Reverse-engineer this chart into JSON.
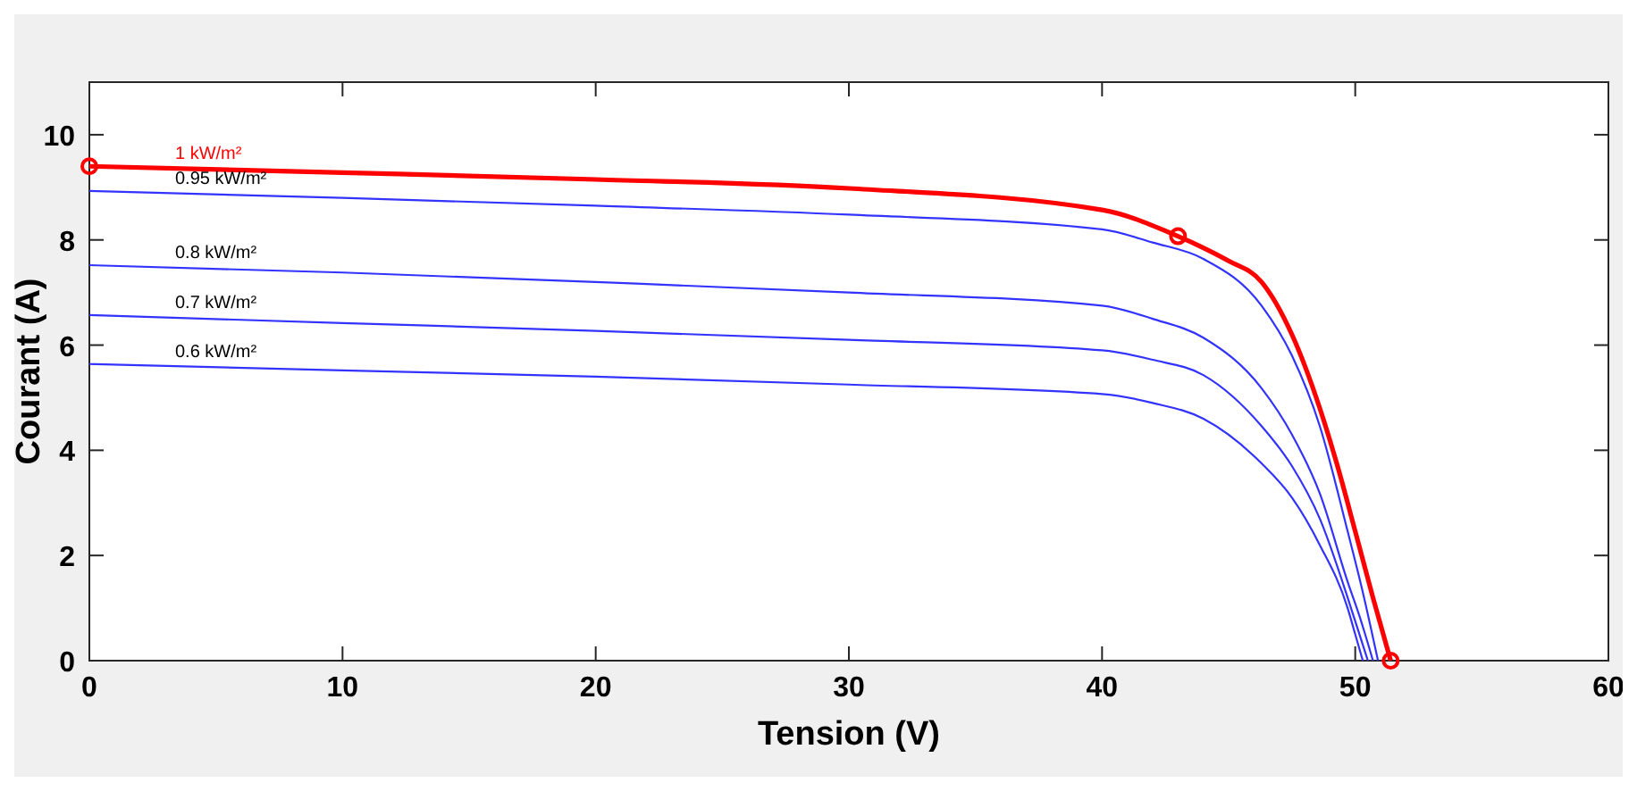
{
  "chart_data": {
    "type": "line",
    "xlabel": "Tension (V)",
    "ylabel": "Courant (A)",
    "xlim": [
      0,
      60
    ],
    "ylim": [
      0,
      11
    ],
    "xticks": [
      0,
      10,
      20,
      30,
      40,
      50,
      60
    ],
    "yticks": [
      0,
      2,
      4,
      6,
      8,
      10
    ],
    "grid": false,
    "marker": "none",
    "line_style": "solid",
    "series": [
      {
        "name": "1 kW/m²",
        "color": "#ff0000",
        "x": [
          0,
          10,
          20,
          30,
          40,
          43,
          44,
          45,
          46.3,
          47.5,
          48.6,
          49.3,
          50,
          50.7,
          51.4
        ],
        "values": [
          9.4,
          9.28,
          9.15,
          8.98,
          8.57,
          8.07,
          7.85,
          7.6,
          7.2,
          6.2,
          4.8,
          3.7,
          2.46,
          1.2,
          0
        ]
      },
      {
        "name": "0.95 kW/m²",
        "color": "#3333ff",
        "x": [
          0,
          10,
          20,
          30,
          40,
          42,
          44,
          46.3,
          47.5,
          48.6,
          49.7,
          50.3,
          50.9
        ],
        "values": [
          8.93,
          8.8,
          8.65,
          8.48,
          8.2,
          7.95,
          7.64,
          6.75,
          5.8,
          4.46,
          2.46,
          1.3,
          0
        ]
      },
      {
        "name": "0.8 kW/m²",
        "color": "#3333ff",
        "x": [
          0,
          10,
          20,
          30,
          40,
          42,
          44,
          46.3,
          47.5,
          48.6,
          49.7,
          50.2,
          50.7
        ],
        "values": [
          7.52,
          7.38,
          7.2,
          7.0,
          6.75,
          6.5,
          6.14,
          5.18,
          4.3,
          3.18,
          1.5,
          0.8,
          0
        ]
      },
      {
        "name": "0.7 kW/m²",
        "color": "#3333ff",
        "x": [
          0,
          10,
          20,
          30,
          40,
          42,
          44,
          46.3,
          47.5,
          48.6,
          49.7,
          50.1,
          50.5
        ],
        "values": [
          6.57,
          6.42,
          6.27,
          6.1,
          5.9,
          5.72,
          5.43,
          4.46,
          3.7,
          2.7,
          1.2,
          0.6,
          0
        ]
      },
      {
        "name": "0.6 kW/m²",
        "color": "#3333ff",
        "x": [
          0,
          10,
          20,
          30,
          40,
          42,
          44,
          46.3,
          47.5,
          48.6,
          49.7,
          50,
          50.3
        ],
        "values": [
          5.64,
          5.52,
          5.4,
          5.25,
          5.07,
          4.9,
          4.6,
          3.75,
          3.1,
          2.2,
          1.0,
          0.5,
          0
        ]
      },
      {
        "type": "scatter",
        "color": "#ff0000",
        "marker": "circle",
        "x": [
          0,
          43,
          51.4
        ],
        "values": [
          9.4,
          8.07,
          0
        ]
      }
    ]
  }
}
